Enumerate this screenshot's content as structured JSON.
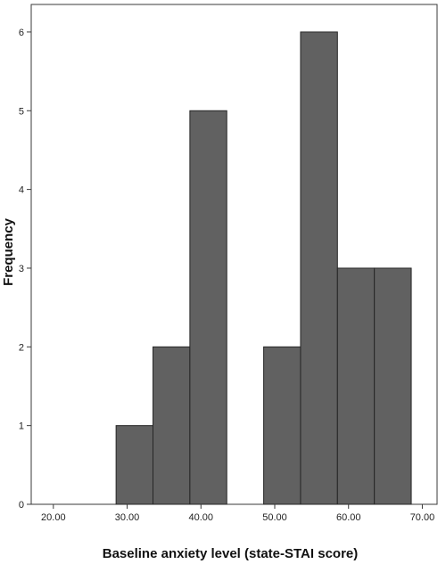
{
  "chart_data": {
    "type": "bar",
    "subtype": "histogram",
    "xlabel": "Baseline anxiety level (state-STAI score)",
    "ylabel": "Frequency",
    "xlim": [
      17,
      72
    ],
    "ylim": [
      0,
      6.35
    ],
    "x_ticks": [
      20,
      30,
      40,
      50,
      60,
      70
    ],
    "x_tick_labels": [
      "20.00",
      "30.00",
      "40.00",
      "50.00",
      "60.00",
      "70.00"
    ],
    "y_ticks": [
      0,
      1,
      2,
      3,
      4,
      5,
      6
    ],
    "y_tick_labels": [
      "0",
      "1",
      "2",
      "3",
      "4",
      "5",
      "6"
    ],
    "bins": [
      {
        "x0": 28.5,
        "x1": 33.5,
        "count": 1
      },
      {
        "x0": 33.5,
        "x1": 38.5,
        "count": 2
      },
      {
        "x0": 38.5,
        "x1": 43.5,
        "count": 5
      },
      {
        "x0": 43.5,
        "x1": 48.5,
        "count": 0
      },
      {
        "x0": 48.5,
        "x1": 53.5,
        "count": 2
      },
      {
        "x0": 53.5,
        "x1": 58.5,
        "count": 6
      },
      {
        "x0": 58.5,
        "x1": 63.5,
        "count": 3
      },
      {
        "x0": 63.5,
        "x1": 68.5,
        "count": 3
      }
    ],
    "grid": false,
    "legend": "none",
    "colors": {
      "bar_fill": "#616161",
      "bar_stroke": "#262626",
      "axis": "#3a3a3a",
      "background": "#ffffff"
    }
  }
}
